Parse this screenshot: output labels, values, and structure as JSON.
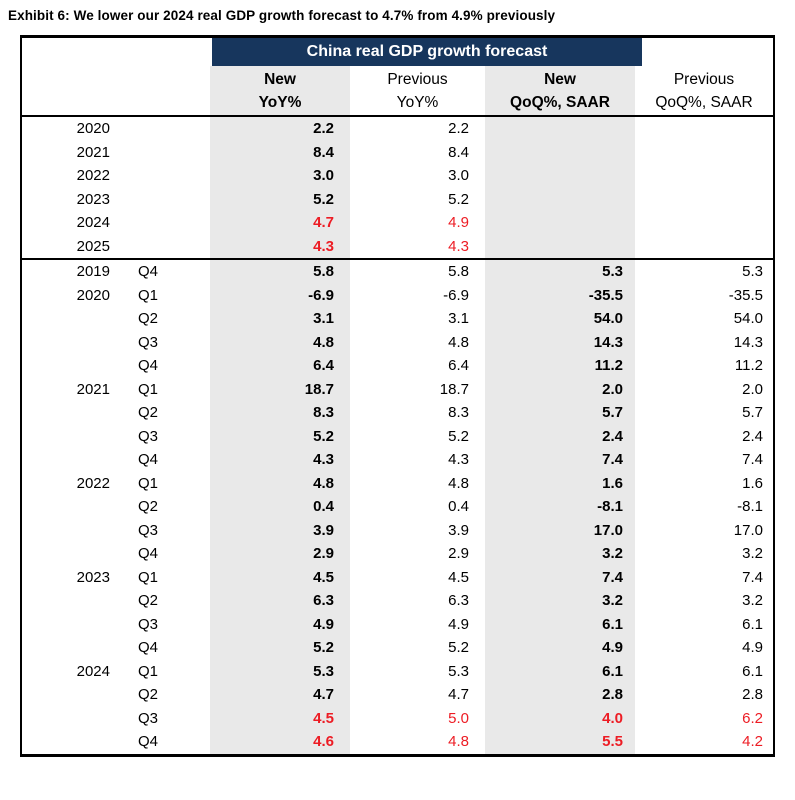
{
  "exhibit_title": "Exhibit 6: We lower our 2024 real GDP growth forecast to 4.7% from 4.9% previously",
  "colors": {
    "header_bar": "#17365d",
    "header_text": "#ffffff",
    "highlight_red": "#ed1c24",
    "column_shade": "#e9e9e9",
    "border": "#000000"
  },
  "table": {
    "title": "China real GDP growth forecast",
    "columns": {
      "new_yoy": {
        "line1": "New",
        "line2": "YoY%"
      },
      "prev_yoy": {
        "line1": "Previous",
        "line2": "YoY%"
      },
      "new_qoq": {
        "line1": "New",
        "line2": "QoQ%, SAAR"
      },
      "prev_qoq": {
        "line1": "Previous",
        "line2": "QoQ%, SAAR"
      }
    },
    "annual_rows": [
      {
        "year": "2020",
        "quarter": "",
        "new_yoy": "2.2",
        "prev_yoy": "2.2",
        "new_qoq": "",
        "prev_qoq": "",
        "highlight": false
      },
      {
        "year": "2021",
        "quarter": "",
        "new_yoy": "8.4",
        "prev_yoy": "8.4",
        "new_qoq": "",
        "prev_qoq": "",
        "highlight": false
      },
      {
        "year": "2022",
        "quarter": "",
        "new_yoy": "3.0",
        "prev_yoy": "3.0",
        "new_qoq": "",
        "prev_qoq": "",
        "highlight": false
      },
      {
        "year": "2023",
        "quarter": "",
        "new_yoy": "5.2",
        "prev_yoy": "5.2",
        "new_qoq": "",
        "prev_qoq": "",
        "highlight": false
      },
      {
        "year": "2024",
        "quarter": "",
        "new_yoy": "4.7",
        "prev_yoy": "4.9",
        "new_qoq": "",
        "prev_qoq": "",
        "highlight": true
      },
      {
        "year": "2025",
        "quarter": "",
        "new_yoy": "4.3",
        "prev_yoy": "4.3",
        "new_qoq": "",
        "prev_qoq": "",
        "highlight": true
      }
    ],
    "quarterly_rows": [
      {
        "year": "2019",
        "quarter": "Q4",
        "new_yoy": "5.8",
        "prev_yoy": "5.8",
        "new_qoq": "5.3",
        "prev_qoq": "5.3",
        "highlight": false
      },
      {
        "year": "2020",
        "quarter": "Q1",
        "new_yoy": "-6.9",
        "prev_yoy": "-6.9",
        "new_qoq": "-35.5",
        "prev_qoq": "-35.5",
        "highlight": false
      },
      {
        "year": "",
        "quarter": "Q2",
        "new_yoy": "3.1",
        "prev_yoy": "3.1",
        "new_qoq": "54.0",
        "prev_qoq": "54.0",
        "highlight": false
      },
      {
        "year": "",
        "quarter": "Q3",
        "new_yoy": "4.8",
        "prev_yoy": "4.8",
        "new_qoq": "14.3",
        "prev_qoq": "14.3",
        "highlight": false
      },
      {
        "year": "",
        "quarter": "Q4",
        "new_yoy": "6.4",
        "prev_yoy": "6.4",
        "new_qoq": "11.2",
        "prev_qoq": "11.2",
        "highlight": false
      },
      {
        "year": "2021",
        "quarter": "Q1",
        "new_yoy": "18.7",
        "prev_yoy": "18.7",
        "new_qoq": "2.0",
        "prev_qoq": "2.0",
        "highlight": false
      },
      {
        "year": "",
        "quarter": "Q2",
        "new_yoy": "8.3",
        "prev_yoy": "8.3",
        "new_qoq": "5.7",
        "prev_qoq": "5.7",
        "highlight": false
      },
      {
        "year": "",
        "quarter": "Q3",
        "new_yoy": "5.2",
        "prev_yoy": "5.2",
        "new_qoq": "2.4",
        "prev_qoq": "2.4",
        "highlight": false
      },
      {
        "year": "",
        "quarter": "Q4",
        "new_yoy": "4.3",
        "prev_yoy": "4.3",
        "new_qoq": "7.4",
        "prev_qoq": "7.4",
        "highlight": false
      },
      {
        "year": "2022",
        "quarter": "Q1",
        "new_yoy": "4.8",
        "prev_yoy": "4.8",
        "new_qoq": "1.6",
        "prev_qoq": "1.6",
        "highlight": false
      },
      {
        "year": "",
        "quarter": "Q2",
        "new_yoy": "0.4",
        "prev_yoy": "0.4",
        "new_qoq": "-8.1",
        "prev_qoq": "-8.1",
        "highlight": false
      },
      {
        "year": "",
        "quarter": "Q3",
        "new_yoy": "3.9",
        "prev_yoy": "3.9",
        "new_qoq": "17.0",
        "prev_qoq": "17.0",
        "highlight": false
      },
      {
        "year": "",
        "quarter": "Q4",
        "new_yoy": "2.9",
        "prev_yoy": "2.9",
        "new_qoq": "3.2",
        "prev_qoq": "3.2",
        "highlight": false
      },
      {
        "year": "2023",
        "quarter": "Q1",
        "new_yoy": "4.5",
        "prev_yoy": "4.5",
        "new_qoq": "7.4",
        "prev_qoq": "7.4",
        "highlight": false
      },
      {
        "year": "",
        "quarter": "Q2",
        "new_yoy": "6.3",
        "prev_yoy": "6.3",
        "new_qoq": "3.2",
        "prev_qoq": "3.2",
        "highlight": false
      },
      {
        "year": "",
        "quarter": "Q3",
        "new_yoy": "4.9",
        "prev_yoy": "4.9",
        "new_qoq": "6.1",
        "prev_qoq": "6.1",
        "highlight": false
      },
      {
        "year": "",
        "quarter": "Q4",
        "new_yoy": "5.2",
        "prev_yoy": "5.2",
        "new_qoq": "4.9",
        "prev_qoq": "4.9",
        "highlight": false
      },
      {
        "year": "2024",
        "quarter": "Q1",
        "new_yoy": "5.3",
        "prev_yoy": "5.3",
        "new_qoq": "6.1",
        "prev_qoq": "6.1",
        "highlight": false
      },
      {
        "year": "",
        "quarter": "Q2",
        "new_yoy": "4.7",
        "prev_yoy": "4.7",
        "new_qoq": "2.8",
        "prev_qoq": "2.8",
        "highlight": false
      },
      {
        "year": "",
        "quarter": "Q3",
        "new_yoy": "4.5",
        "prev_yoy": "5.0",
        "new_qoq": "4.0",
        "prev_qoq": "6.2",
        "highlight": true
      },
      {
        "year": "",
        "quarter": "Q4",
        "new_yoy": "4.6",
        "prev_yoy": "4.8",
        "new_qoq": "5.5",
        "prev_qoq": "4.2",
        "highlight": true
      }
    ]
  }
}
